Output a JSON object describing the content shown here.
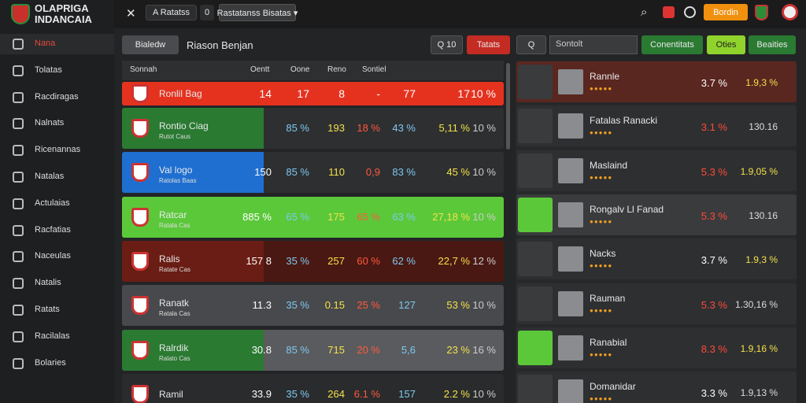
{
  "header": {
    "brand": [
      "OLAPRIGA",
      "INDANCAIA"
    ],
    "tabs": [
      "A Ratatss",
      "0",
      "Rastatanss Bisatas ▾"
    ],
    "button": "Bordin"
  },
  "sidebar": [
    "Nana",
    "Tolatas",
    "Racdiragas",
    "Nalnats",
    "Ricenannas",
    "Natalas",
    "Actulaias",
    "Racfatias",
    "Naceulas",
    "Natalis",
    "Ratats",
    "Racilalas",
    "Bolaries"
  ],
  "main": {
    "toolbar": {
      "button": "Bialedw",
      "title": "Riason Benjan",
      "search": "Q 10",
      "action": "Tatats"
    },
    "columns": [
      "Sonnah",
      "Oentt",
      "Oone",
      "Reno",
      "Sontiel"
    ],
    "rows": [
      {
        "name": "Ronlil Bag",
        "sub": null,
        "cells": [
          "14",
          "17",
          "8",
          "-",
          "77",
          "17",
          "10 %"
        ]
      },
      {
        "name": "Rontio Ciag",
        "sub": "Rutot Caus",
        "cells": [
          null,
          "85 %",
          "193",
          "18 %",
          "43 %",
          "5,11 %",
          "10 %"
        ]
      },
      {
        "name": "Val logo",
        "sub": "Ratolas Baas",
        "cells": [
          "150",
          "85 %",
          "110",
          "0,9",
          "83 %",
          "45 %",
          "10 %"
        ]
      },
      {
        "name": "Ratcar",
        "sub": "Ratala Cas",
        "cells": [
          "885 %",
          "65 %",
          "175",
          "65 %",
          "63 %",
          "27,18 %",
          "10 %"
        ]
      },
      {
        "name": "Ralis",
        "sub": "Ratate Cas",
        "cells": [
          "157 8",
          "35 %",
          "257",
          "60 %",
          "62 %",
          "22,7 %",
          "12 %"
        ]
      },
      {
        "name": "Ranatk",
        "sub": "Ratala Cas",
        "cells": [
          "11.3",
          "35 %",
          "0.15",
          "25 %",
          "127",
          "53 %",
          "10 %"
        ]
      },
      {
        "name": "Ralrdik",
        "sub": "Ralato Cas",
        "cells": [
          "30.8",
          "85 %",
          "715",
          "20 %",
          "5,6",
          "23 %",
          "16 %"
        ]
      },
      {
        "name": "Ramil",
        "sub": null,
        "cells": [
          "33.9",
          "35 %",
          "264",
          "6.1 %",
          "157",
          "2.2 %",
          "10 %"
        ]
      }
    ]
  },
  "side": {
    "toolbar": {
      "search": "Q",
      "placeholder": "Sontolt",
      "buttons": [
        "Conentitats",
        "Oties",
        "Beaities"
      ]
    },
    "players": [
      {
        "name": "Rannle",
        "odds": "3.7 %",
        "value": "1.9,3 %"
      },
      {
        "name": "Fatalas Ranacki",
        "odds": "3.1 %",
        "value": "130.16"
      },
      {
        "name": "Maslaind",
        "odds": "5.3 %",
        "value": "1.9,05 %"
      },
      {
        "name": "Rongalv Ll Fanad",
        "odds": "5.3 %",
        "value": "130.16"
      },
      {
        "name": "Nacks",
        "odds": "3.7 %",
        "value": "1.9,3 %"
      },
      {
        "name": "Rauman",
        "odds": "5.3 %",
        "value": "1.30,16 %"
      },
      {
        "name": "Ranabial",
        "odds": "8.3 %",
        "value": "1.9,16 %"
      },
      {
        "name": "Domanidar",
        "odds": "3.3 %",
        "value": "1.9,13 %"
      }
    ]
  }
}
